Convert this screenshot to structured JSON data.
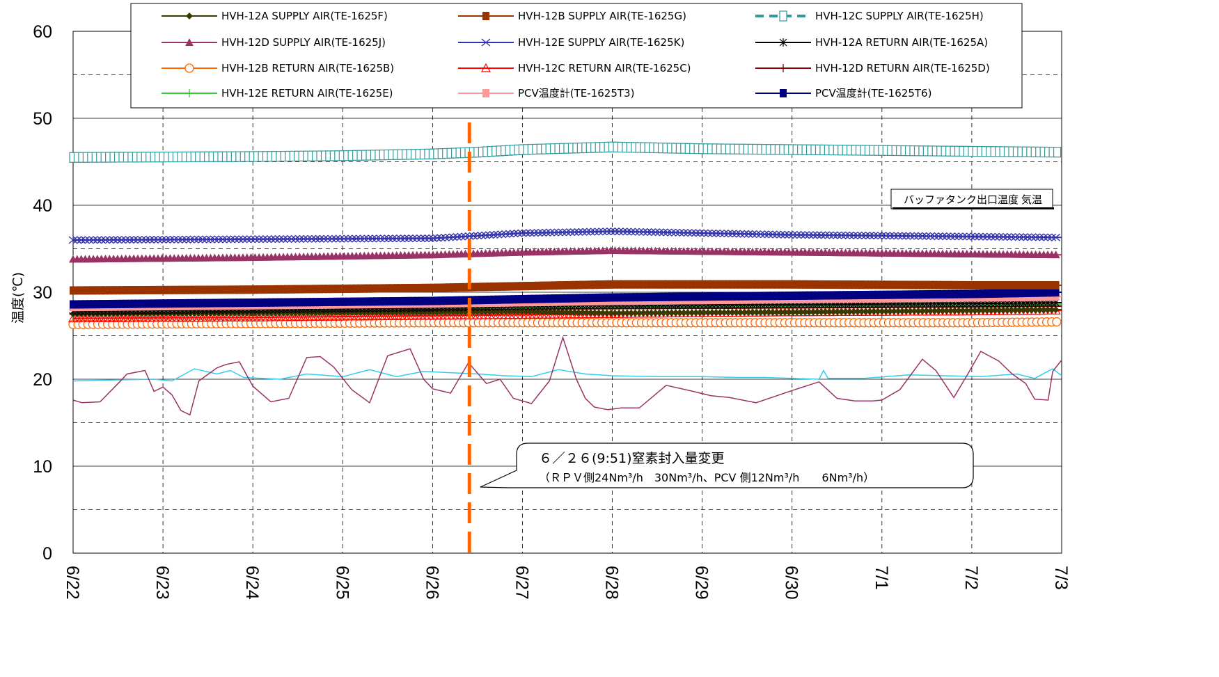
{
  "chart_data": {
    "type": "line",
    "ylabel": "温度(℃)",
    "ylim": [
      0,
      60
    ],
    "yticks": [
      "0",
      "10",
      "20",
      "30",
      "40",
      "50",
      "60"
    ],
    "xticks": [
      "6/22",
      "6/23",
      "6/24",
      "6/25",
      "6/26",
      "6/27",
      "6/28",
      "6/29",
      "6/30",
      "7/1",
      "7/2",
      "7/3"
    ],
    "xlim_days": [
      0,
      11
    ],
    "grid": true,
    "legend_position": "top",
    "series": [
      {
        "name": "HVH-12A SUPPLY AIR(TE-1625F)",
        "color": "#3a3a00",
        "marker": "diamond",
        "x": [
          0,
          2,
          4,
          5,
          6,
          8,
          10,
          11
        ],
        "y": [
          27.5,
          27.6,
          27.7,
          27.8,
          27.6,
          27.7,
          27.9,
          28.0
        ]
      },
      {
        "name": "HVH-12B SUPPLY AIR(TE-1625G)",
        "color": "#993300",
        "marker": "square",
        "x": [
          0,
          2,
          4,
          5,
          6,
          8,
          10,
          11
        ],
        "y": [
          30.2,
          30.3,
          30.5,
          30.7,
          30.9,
          30.9,
          30.8,
          30.8
        ]
      },
      {
        "name": "HVH-12C SUPPLY AIR(TE-1625H)",
        "color": "#339999",
        "marker": "open-square",
        "x": [
          0,
          2,
          3,
          4,
          4.5,
          5,
          6,
          7,
          8,
          9,
          10,
          11
        ],
        "y": [
          45.5,
          45.6,
          45.7,
          45.9,
          46.1,
          46.4,
          46.7,
          46.5,
          46.4,
          46.3,
          46.2,
          46.1
        ]
      },
      {
        "name": "HVH-12D SUPPLY AIR(TE-1625J)",
        "color": "#993366",
        "marker": "triangle",
        "x": [
          0,
          2,
          4,
          5,
          6,
          8,
          10,
          11
        ],
        "y": [
          33.8,
          34.0,
          34.3,
          34.6,
          34.8,
          34.6,
          34.4,
          34.3
        ]
      },
      {
        "name": "HVH-12E SUPPLY AIR(TE-1625K)",
        "color": "#3333aa",
        "marker": "x",
        "x": [
          0,
          2,
          4,
          5,
          6,
          8,
          10,
          11
        ],
        "y": [
          36.0,
          36.1,
          36.2,
          36.8,
          37.0,
          36.6,
          36.4,
          36.3
        ]
      },
      {
        "name": "HVH-12A RETURN AIR(TE-1625A)",
        "color": "#000000",
        "marker": "asterisk",
        "x": [
          0,
          2,
          4,
          5,
          6,
          8,
          10,
          11
        ],
        "y": [
          27.8,
          28.0,
          28.2,
          28.4,
          28.5,
          28.6,
          28.7,
          28.8
        ]
      },
      {
        "name": "HVH-12B RETURN AIR(TE-1625B)",
        "color": "#ff6600",
        "marker": "open-circle",
        "x": [
          0,
          2,
          4,
          6,
          8,
          10,
          11
        ],
        "y": [
          26.3,
          26.4,
          26.5,
          26.5,
          26.5,
          26.5,
          26.6
        ]
      },
      {
        "name": "HVH-12C RETURN AIR(TE-1625C)",
        "color": "#ff0000",
        "marker": "open-triangle",
        "x": [
          0,
          2,
          4,
          6,
          8,
          10,
          11
        ],
        "y": [
          27.0,
          27.1,
          27.3,
          27.5,
          27.7,
          27.8,
          27.9
        ]
      },
      {
        "name": "HVH-12D RETURN AIR(TE-1625D)",
        "color": "#800000",
        "marker": "plus",
        "x": [
          0,
          2,
          4,
          6,
          8,
          10,
          11
        ],
        "y": [
          27.6,
          27.8,
          28.0,
          28.1,
          28.2,
          28.3,
          28.4
        ]
      },
      {
        "name": "HVH-12E RETURN AIR(TE-1625E)",
        "color": "#33cc33",
        "marker": "plus",
        "x": [
          0,
          2,
          4,
          6,
          8,
          10,
          11
        ],
        "y": [
          28.0,
          28.1,
          28.2,
          28.3,
          28.4,
          28.5,
          28.6
        ]
      },
      {
        "name": "PCV温度計(TE-1625T3)",
        "color": "#ff9999",
        "marker": "square",
        "x": [
          0,
          2,
          4,
          6,
          8,
          10,
          11
        ],
        "y": [
          28.3,
          28.5,
          28.7,
          29.0,
          29.2,
          29.4,
          29.5
        ]
      },
      {
        "name": "PCV温度計(TE-1625T6)",
        "color": "#000080",
        "marker": "square",
        "x": [
          0,
          2,
          4,
          5,
          6,
          8,
          10,
          11
        ],
        "y": [
          28.6,
          28.8,
          29.0,
          29.2,
          29.4,
          29.6,
          29.8,
          30.0
        ]
      },
      {
        "name": "バッファタンク出口温度",
        "color": "#33ccee",
        "marker": "none",
        "x": [
          0,
          0.4,
          0.9,
          1.1,
          1.35,
          1.6,
          1.75,
          1.9,
          2.3,
          2.6,
          3.0,
          3.3,
          3.6,
          3.9,
          4.3,
          4.5,
          4.8,
          5.1,
          5.4,
          5.7,
          6.0,
          6.5,
          7.0,
          7.4,
          7.7,
          8.0,
          8.3,
          8.35,
          8.4,
          8.8,
          9.3,
          9.7,
          10.1,
          10.5,
          10.7,
          10.9,
          11
        ],
        "y": [
          19.8,
          19.9,
          20.0,
          19.8,
          21.2,
          20.6,
          21.0,
          20.2,
          20.0,
          20.6,
          20.3,
          21.1,
          20.3,
          20.9,
          20.7,
          20.6,
          20.4,
          20.3,
          21.1,
          20.6,
          20.4,
          20.3,
          20.3,
          20.2,
          20.2,
          20.1,
          20.0,
          21.0,
          20.1,
          20.1,
          20.5,
          20.4,
          20.3,
          20.6,
          20.1,
          21.2,
          20.4
        ]
      },
      {
        "name": "気温",
        "color": "#993366",
        "marker": "none",
        "x": [
          0,
          0.1,
          0.3,
          0.5,
          0.6,
          0.8,
          0.9,
          1.0,
          1.1,
          1.2,
          1.3,
          1.4,
          1.6,
          1.7,
          1.85,
          2.0,
          2.2,
          2.4,
          2.6,
          2.75,
          2.9,
          3.1,
          3.3,
          3.5,
          3.75,
          3.9,
          4.0,
          4.2,
          4.4,
          4.6,
          4.75,
          4.9,
          5.1,
          5.3,
          5.45,
          5.6,
          5.7,
          5.8,
          5.95,
          6.1,
          6.3,
          6.6,
          6.9,
          7.1,
          7.3,
          7.6,
          8.0,
          8.3,
          8.5,
          8.7,
          8.9,
          9.0,
          9.2,
          9.45,
          9.6,
          9.8,
          9.95,
          10.1,
          10.3,
          10.45,
          10.6,
          10.7,
          10.85,
          10.9,
          11
        ],
        "y": [
          17.6,
          17.3,
          17.4,
          19.5,
          20.6,
          21.0,
          18.6,
          19.1,
          18.2,
          16.4,
          15.9,
          19.8,
          21.3,
          21.7,
          22.0,
          19.2,
          17.4,
          17.8,
          22.5,
          22.6,
          21.4,
          18.8,
          17.3,
          22.7,
          23.5,
          20.0,
          18.9,
          18.4,
          21.9,
          19.5,
          20.0,
          17.8,
          17.2,
          19.8,
          24.8,
          20.0,
          17.8,
          16.8,
          16.5,
          16.7,
          16.7,
          19.3,
          18.6,
          18.1,
          17.9,
          17.3,
          18.7,
          19.7,
          17.8,
          17.5,
          17.5,
          17.6,
          18.8,
          22.3,
          21.0,
          17.9,
          20.5,
          23.2,
          22.1,
          20.6,
          19.5,
          17.7,
          17.6,
          20.9,
          22.2
        ]
      }
    ],
    "inline_labels": [
      "バッファタンク出口温度",
      "気温"
    ],
    "annotation": {
      "line1": "６／２６(9:51)窒素封入量変更",
      "line2": "（ＲＰＶ側24Nm³/h　30Nm³/h、PCV 側12Nm³/h　　6Nm³/h）",
      "event_x_days": 4.41
    }
  }
}
